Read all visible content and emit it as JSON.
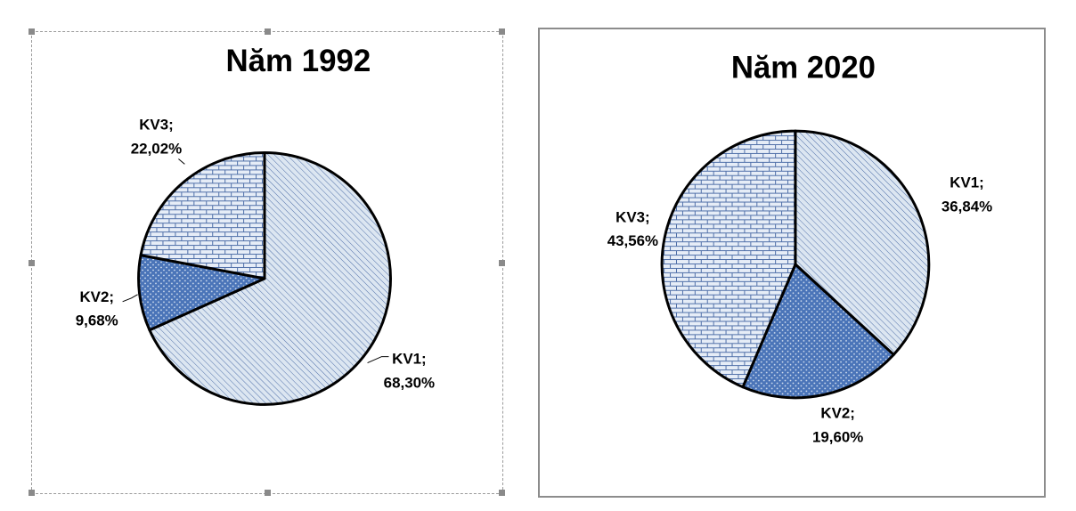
{
  "chart_data": [
    {
      "type": "pie",
      "title": "Năm 1992",
      "categories": [
        "KV1",
        "KV2",
        "KV3"
      ],
      "values": [
        68.3,
        9.68,
        22.02
      ],
      "labels": [
        {
          "name": "KV1;",
          "value": "68,30%"
        },
        {
          "name": "KV2;",
          "value": "9,68%"
        },
        {
          "name": "KV3;",
          "value": "22,02%"
        }
      ],
      "slice_patterns": [
        "diagonal-hatch",
        "dotted-dark",
        "brick"
      ],
      "selected": true
    },
    {
      "type": "pie",
      "title": "Năm 2020",
      "categories": [
        "KV1",
        "KV2",
        "KV3"
      ],
      "values": [
        36.84,
        19.6,
        43.56
      ],
      "labels": [
        {
          "name": "KV1;",
          "value": "36,84%"
        },
        {
          "name": "KV2;",
          "value": "19,60%"
        },
        {
          "name": "KV3;",
          "value": "43,56%"
        }
      ],
      "slice_patterns": [
        "diagonal-hatch",
        "dotted-dark",
        "brick"
      ],
      "selected": false
    }
  ],
  "colors": {
    "hatch_fill": "#dce6f1",
    "hatch_line": "#4f6fa8",
    "dark_fill": "#4a74b8",
    "dot": "#d7e2f2",
    "brick_fill": "#e6edf7",
    "brick_line": "#4f6fa8",
    "outline": "#000000"
  }
}
